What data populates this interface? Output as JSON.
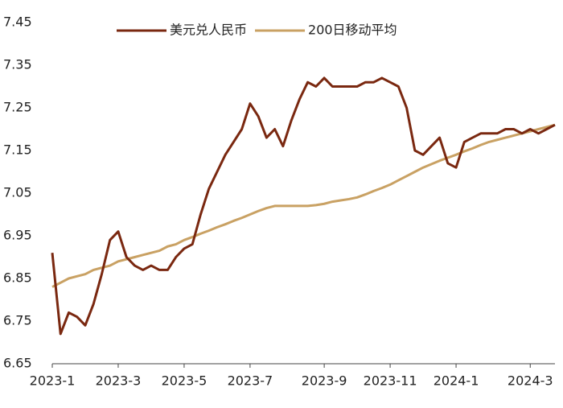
{
  "chart_data": {
    "type": "line",
    "categories": [
      "2023-1",
      null,
      null,
      null,
      null,
      null,
      null,
      null,
      "2023-3",
      null,
      null,
      null,
      null,
      null,
      null,
      null,
      "2023-5",
      null,
      null,
      null,
      null,
      null,
      null,
      null,
      "2023-7",
      null,
      null,
      null,
      null,
      null,
      null,
      null,
      null,
      "2023-9",
      null,
      null,
      null,
      null,
      null,
      null,
      null,
      "2023-11",
      null,
      null,
      null,
      null,
      null,
      null,
      null,
      "2024-1",
      null,
      null,
      null,
      null,
      null,
      null,
      null,
      null,
      "2024-3",
      null,
      null,
      null
    ],
    "series": [
      {
        "name": "美元兑人民币",
        "color": "#7a2810",
        "values": [
          6.91,
          6.72,
          6.77,
          6.76,
          6.74,
          6.79,
          6.86,
          6.94,
          6.96,
          6.9,
          6.88,
          6.87,
          6.88,
          6.87,
          6.87,
          6.9,
          6.92,
          6.93,
          7.0,
          7.06,
          7.1,
          7.14,
          7.17,
          7.2,
          7.26,
          7.23,
          7.18,
          7.2,
          7.16,
          7.22,
          7.27,
          7.31,
          7.3,
          7.32,
          7.3,
          7.3,
          7.3,
          7.3,
          7.31,
          7.31,
          7.32,
          7.31,
          7.3,
          7.25,
          7.15,
          7.14,
          7.16,
          7.18,
          7.12,
          7.11,
          7.17,
          7.18,
          7.19,
          7.19,
          7.19,
          7.2,
          7.2,
          7.19,
          7.2,
          7.19,
          7.2,
          7.21
        ]
      },
      {
        "name": "200日移动平均",
        "color": "#c9a163",
        "values": [
          6.83,
          6.84,
          6.85,
          6.855,
          6.86,
          6.87,
          6.875,
          6.88,
          6.89,
          6.895,
          6.9,
          6.905,
          6.91,
          6.915,
          6.925,
          6.93,
          6.94,
          6.947,
          6.955,
          6.962,
          6.97,
          6.977,
          6.985,
          6.992,
          7.0,
          7.008,
          7.015,
          7.02,
          7.02,
          7.02,
          7.02,
          7.02,
          7.022,
          7.025,
          7.03,
          7.033,
          7.036,
          7.04,
          7.047,
          7.055,
          7.062,
          7.07,
          7.08,
          7.09,
          7.1,
          7.11,
          7.118,
          7.126,
          7.133,
          7.14,
          7.148,
          7.155,
          7.163,
          7.17,
          7.175,
          7.18,
          7.185,
          7.19,
          7.195,
          7.2,
          7.205,
          7.21
        ]
      }
    ],
    "ylim": [
      6.65,
      7.45
    ],
    "yticks": [
      6.65,
      6.75,
      6.85,
      6.95,
      7.05,
      7.15,
      7.25,
      7.35,
      7.45
    ]
  }
}
